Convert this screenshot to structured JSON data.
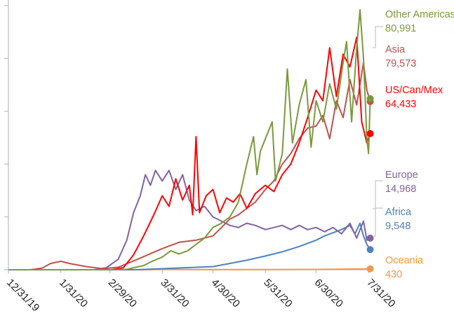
{
  "chart_data": {
    "type": "line",
    "title": "",
    "xlabel": "",
    "ylabel": "",
    "x_tick_labels": [
      "12/31/19",
      "1/31/20",
      "2/29/20",
      "3/31/20",
      "4/30/20",
      "5/31/20",
      "6/30/20",
      "7/31/20"
    ],
    "x_range": [
      "2019-12-31",
      "2020-08-02"
    ],
    "y_range": [
      0,
      125000
    ],
    "y_ticks": [
      0,
      25000,
      50000,
      75000,
      100000,
      125000
    ],
    "grid": false,
    "legend_placement": "right, at line ends",
    "series": [
      {
        "name": "Other Americas",
        "value_label": "80,991",
        "color": "#7a9a3c",
        "points": [
          [
            "2019-12-31",
            0
          ],
          [
            "2020-02-29",
            0
          ],
          [
            "2020-03-10",
            200
          ],
          [
            "2020-03-20",
            2000
          ],
          [
            "2020-03-25",
            4000
          ],
          [
            "2020-03-31",
            6000
          ],
          [
            "2020-04-05",
            9000
          ],
          [
            "2020-04-10",
            7500
          ],
          [
            "2020-04-15",
            9000
          ],
          [
            "2020-04-20",
            12000
          ],
          [
            "2020-04-25",
            15000
          ],
          [
            "2020-04-30",
            20000
          ],
          [
            "2020-05-05",
            22000
          ],
          [
            "2020-05-10",
            25000
          ],
          [
            "2020-05-15",
            32000
          ],
          [
            "2020-05-20",
            50000
          ],
          [
            "2020-05-24",
            63000
          ],
          [
            "2020-05-26",
            45000
          ],
          [
            "2020-05-28",
            56000
          ],
          [
            "2020-05-31",
            62000
          ],
          [
            "2020-06-04",
            70000
          ],
          [
            "2020-06-06",
            42000
          ],
          [
            "2020-06-10",
            55000
          ],
          [
            "2020-06-13",
            95000
          ],
          [
            "2020-06-16",
            60000
          ],
          [
            "2020-06-20",
            78000
          ],
          [
            "2020-06-24",
            90000
          ],
          [
            "2020-06-27",
            58000
          ],
          [
            "2020-06-30",
            80000
          ],
          [
            "2020-07-04",
            70000
          ],
          [
            "2020-07-08",
            88000
          ],
          [
            "2020-07-12",
            76000
          ],
          [
            "2020-07-16",
            98000
          ],
          [
            "2020-07-18",
            108000
          ],
          [
            "2020-07-21",
            70000
          ],
          [
            "2020-07-24",
            105000
          ],
          [
            "2020-07-26",
            123000
          ],
          [
            "2020-07-28",
            100000
          ],
          [
            "2020-07-30",
            62000
          ],
          [
            "2020-07-31",
            55000
          ],
          [
            "2020-08-01",
            80991
          ]
        ]
      },
      {
        "name": "Asia",
        "value_label": "79,573",
        "color": "#c0504d",
        "points": [
          [
            "2019-12-31",
            0
          ],
          [
            "2020-01-13",
            0
          ],
          [
            "2020-01-20",
            800
          ],
          [
            "2020-01-25",
            3000
          ],
          [
            "2020-01-31",
            4000
          ],
          [
            "2020-02-05",
            3000
          ],
          [
            "2020-02-15",
            1500
          ],
          [
            "2020-02-25",
            500
          ],
          [
            "2020-03-05",
            1200
          ],
          [
            "2020-03-15",
            4500
          ],
          [
            "2020-03-31",
            10000
          ],
          [
            "2020-04-10",
            13000
          ],
          [
            "2020-04-20",
            14000
          ],
          [
            "2020-04-30",
            16000
          ],
          [
            "2020-05-05",
            20000
          ],
          [
            "2020-05-10",
            24000
          ],
          [
            "2020-05-15",
            26000
          ],
          [
            "2020-05-20",
            29000
          ],
          [
            "2020-05-25",
            32000
          ],
          [
            "2020-05-31",
            38000
          ],
          [
            "2020-06-05",
            42000
          ],
          [
            "2020-06-10",
            50000
          ],
          [
            "2020-06-15",
            55000
          ],
          [
            "2020-06-20",
            62000
          ],
          [
            "2020-06-25",
            67000
          ],
          [
            "2020-06-30",
            68000
          ],
          [
            "2020-07-04",
            73000
          ],
          [
            "2020-07-08",
            62000
          ],
          [
            "2020-07-12",
            80000
          ],
          [
            "2020-07-16",
            72000
          ],
          [
            "2020-07-20",
            90000
          ],
          [
            "2020-07-24",
            78000
          ],
          [
            "2020-07-28",
            98000
          ],
          [
            "2020-07-30",
            85000
          ],
          [
            "2020-08-01",
            79573
          ]
        ]
      },
      {
        "name": "US/Can/Mex",
        "value_label": "64,433",
        "color": "#ff0000",
        "points": [
          [
            "2019-12-31",
            0
          ],
          [
            "2020-03-01",
            0
          ],
          [
            "2020-03-08",
            1000
          ],
          [
            "2020-03-14",
            7000
          ],
          [
            "2020-03-20",
            16000
          ],
          [
            "2020-03-26",
            26000
          ],
          [
            "2020-03-31",
            35000
          ],
          [
            "2020-04-04",
            30000
          ],
          [
            "2020-04-08",
            43000
          ],
          [
            "2020-04-12",
            33000
          ],
          [
            "2020-04-16",
            40000
          ],
          [
            "2020-04-18",
            26000
          ],
          [
            "2020-04-20",
            63000
          ],
          [
            "2020-04-22",
            27000
          ],
          [
            "2020-04-26",
            35000
          ],
          [
            "2020-04-30",
            38000
          ],
          [
            "2020-05-04",
            27000
          ],
          [
            "2020-05-08",
            34000
          ],
          [
            "2020-05-12",
            32000
          ],
          [
            "2020-05-16",
            36000
          ],
          [
            "2020-05-20",
            29000
          ],
          [
            "2020-05-25",
            36000
          ],
          [
            "2020-05-31",
            40000
          ],
          [
            "2020-06-05",
            37000
          ],
          [
            "2020-06-10",
            45000
          ],
          [
            "2020-06-15",
            50000
          ],
          [
            "2020-06-20",
            60000
          ],
          [
            "2020-06-25",
            72000
          ],
          [
            "2020-06-30",
            85000
          ],
          [
            "2020-07-04",
            80000
          ],
          [
            "2020-07-08",
            105000
          ],
          [
            "2020-07-12",
            82000
          ],
          [
            "2020-07-16",
            102000
          ],
          [
            "2020-07-20",
            96000
          ],
          [
            "2020-07-24",
            110000
          ],
          [
            "2020-07-27",
            70000
          ],
          [
            "2020-07-30",
            60000
          ],
          [
            "2020-08-01",
            64433
          ]
        ]
      },
      {
        "name": "Europe",
        "value_label": "14,968",
        "color": "#8064a2",
        "points": [
          [
            "2019-12-31",
            0
          ],
          [
            "2020-02-20",
            0
          ],
          [
            "2020-02-27",
            1000
          ],
          [
            "2020-03-05",
            5000
          ],
          [
            "2020-03-10",
            14000
          ],
          [
            "2020-03-14",
            27000
          ],
          [
            "2020-03-18",
            35000
          ],
          [
            "2020-03-21",
            45000
          ],
          [
            "2020-03-24",
            40000
          ],
          [
            "2020-03-27",
            47000
          ],
          [
            "2020-03-31",
            42000
          ],
          [
            "2020-04-04",
            47000
          ],
          [
            "2020-04-08",
            38000
          ],
          [
            "2020-04-12",
            45000
          ],
          [
            "2020-04-16",
            33000
          ],
          [
            "2020-04-20",
            28000
          ],
          [
            "2020-04-25",
            30000
          ],
          [
            "2020-04-30",
            25000
          ],
          [
            "2020-05-05",
            23000
          ],
          [
            "2020-05-10",
            21000
          ],
          [
            "2020-05-15",
            20000
          ],
          [
            "2020-05-20",
            22000
          ],
          [
            "2020-05-25",
            21000
          ],
          [
            "2020-05-31",
            19000
          ],
          [
            "2020-06-05",
            20000
          ],
          [
            "2020-06-10",
            21000
          ],
          [
            "2020-06-15",
            19000
          ],
          [
            "2020-06-20",
            21000
          ],
          [
            "2020-06-25",
            19000
          ],
          [
            "2020-06-30",
            20000
          ],
          [
            "2020-07-05",
            18000
          ],
          [
            "2020-07-10",
            20000
          ],
          [
            "2020-07-15",
            17000
          ],
          [
            "2020-07-20",
            22000
          ],
          [
            "2020-07-24",
            15000
          ],
          [
            "2020-07-28",
            23000
          ],
          [
            "2020-07-30",
            14000
          ],
          [
            "2020-08-01",
            14968
          ]
        ]
      },
      {
        "name": "Africa",
        "value_label": "9,548",
        "color": "#4f81bd",
        "points": [
          [
            "2019-12-31",
            0
          ],
          [
            "2020-03-15",
            0
          ],
          [
            "2020-03-31",
            500
          ],
          [
            "2020-04-15",
            1000
          ],
          [
            "2020-04-30",
            1500
          ],
          [
            "2020-05-10",
            3000
          ],
          [
            "2020-05-20",
            4500
          ],
          [
            "2020-05-31",
            6500
          ],
          [
            "2020-06-10",
            8500
          ],
          [
            "2020-06-20",
            11000
          ],
          [
            "2020-06-30",
            14000
          ],
          [
            "2020-07-05",
            16000
          ],
          [
            "2020-07-10",
            17500
          ],
          [
            "2020-07-15",
            19000
          ],
          [
            "2020-07-20",
            21000
          ],
          [
            "2020-07-23",
            17000
          ],
          [
            "2020-07-26",
            22000
          ],
          [
            "2020-07-28",
            16000
          ],
          [
            "2020-07-30",
            12000
          ],
          [
            "2020-08-01",
            9548
          ]
        ]
      },
      {
        "name": "Oceania",
        "value_label": "430",
        "color": "#f79646",
        "points": [
          [
            "2019-12-31",
            0
          ],
          [
            "2020-03-20",
            0
          ],
          [
            "2020-03-31",
            200
          ],
          [
            "2020-04-15",
            100
          ],
          [
            "2020-05-31",
            50
          ],
          [
            "2020-06-30",
            150
          ],
          [
            "2020-07-15",
            300
          ],
          [
            "2020-08-01",
            430
          ]
        ]
      }
    ]
  }
}
